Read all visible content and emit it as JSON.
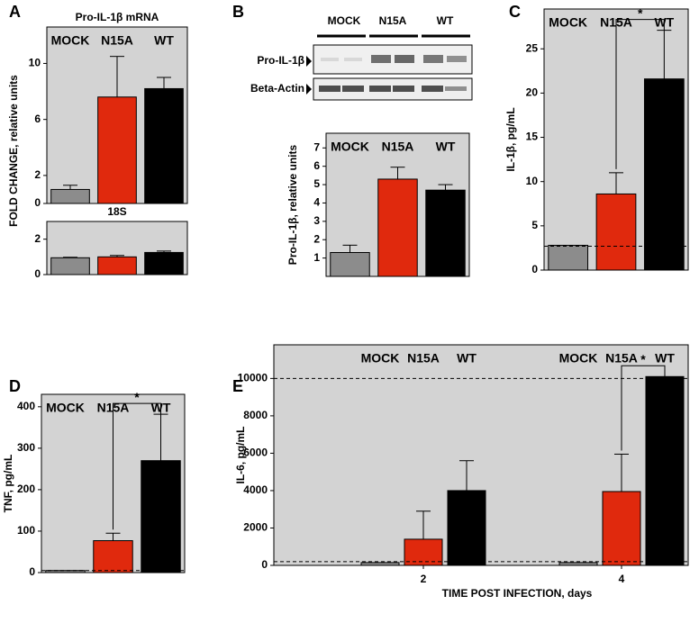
{
  "panels": [
    "A",
    "B",
    "C",
    "D",
    "E"
  ],
  "blot": {
    "lanes": [
      "MOCK",
      "N15A",
      "WT"
    ],
    "rows": [
      "Pro-IL-1β",
      "Beta-Actin"
    ]
  },
  "chart_data": [
    {
      "type": "bar",
      "title": "Pro-IL-1β mRNA",
      "ylabel": "FOLD CHANGE, relative units",
      "legend": true,
      "categories": [
        "MOCK",
        "N15A",
        "WT"
      ],
      "colors": [
        "#8c8c8c",
        "#e0290d",
        "#000000"
      ],
      "values": [
        1.0,
        7.6,
        8.2
      ],
      "errors": [
        0.3,
        2.9,
        0.8
      ],
      "ylim": [
        0,
        12.6
      ],
      "yticks": [
        0,
        2,
        6,
        10
      ]
    },
    {
      "type": "bar",
      "title": "18S",
      "legend": false,
      "categories": [
        "MOCK",
        "N15A",
        "WT"
      ],
      "colors": [
        "#8c8c8c",
        "#e0290d",
        "#000000"
      ],
      "values": [
        0.95,
        1.0,
        1.25
      ],
      "errors": [
        0.03,
        0.08,
        0.08
      ],
      "ylim": [
        0,
        3
      ],
      "yticks": [
        0,
        2
      ]
    },
    {
      "type": "bar",
      "ylabel": "Pro-IL-1β, relative units",
      "legend": true,
      "categories": [
        "MOCK",
        "N15A",
        "WT"
      ],
      "colors": [
        "#8c8c8c",
        "#e0290d",
        "#000000"
      ],
      "values": [
        1.3,
        5.3,
        4.7
      ],
      "errors": [
        0.4,
        0.65,
        0.3
      ],
      "ylim": [
        0,
        7.8
      ],
      "yticks": [
        1,
        2,
        3,
        4,
        5,
        6,
        7
      ]
    },
    {
      "type": "bar",
      "ylabel": "IL-1β, pg/mL",
      "legend": true,
      "annotation": "*",
      "categories": [
        "MOCK",
        "N15A",
        "WT"
      ],
      "colors": [
        "#8c8c8c",
        "#e0290d",
        "#000000"
      ],
      "values": [
        2.8,
        8.6,
        21.6
      ],
      "errors": [
        null,
        2.4,
        5.5
      ],
      "reference_lines": [
        2.7
      ],
      "ylim": [
        0,
        29.5
      ],
      "yticks": [
        0,
        5,
        10,
        15,
        20,
        25
      ]
    },
    {
      "type": "bar",
      "ylabel": "TNF, pg/mL",
      "legend": true,
      "annotation": "*",
      "categories": [
        "MOCK",
        "N15A",
        "WT"
      ],
      "colors": [
        "#8c8c8c",
        "#e0290d",
        "#000000"
      ],
      "values": [
        5,
        77,
        270
      ],
      "errors": [
        null,
        18,
        112
      ],
      "reference_lines": [
        5
      ],
      "ylim": [
        0,
        430
      ],
      "yticks": [
        0,
        100,
        200,
        300,
        400
      ]
    },
    {
      "type": "grouped_bar",
      "ylabel": "IL-6, pg/mL",
      "xlabel": "TIME POST INFECTION, days",
      "legend": true,
      "annotation": "*",
      "categories": [
        "2",
        "4"
      ],
      "series": [
        {
          "name": "MOCK",
          "color": "#8c8c8c",
          "values": [
            150,
            150
          ]
        },
        {
          "name": "N15A",
          "color": "#e0290d",
          "values": [
            1400,
            3950
          ],
          "errors": [
            1500,
            2000
          ]
        },
        {
          "name": "WT",
          "color": "#000000",
          "values": [
            4000,
            10100
          ],
          "errors": [
            1600,
            null
          ]
        }
      ],
      "reference_lines": [
        10000,
        200
      ],
      "ylim": [
        0,
        11800
      ],
      "yticks": [
        0,
        2000,
        4000,
        6000,
        8000,
        10000
      ]
    }
  ]
}
